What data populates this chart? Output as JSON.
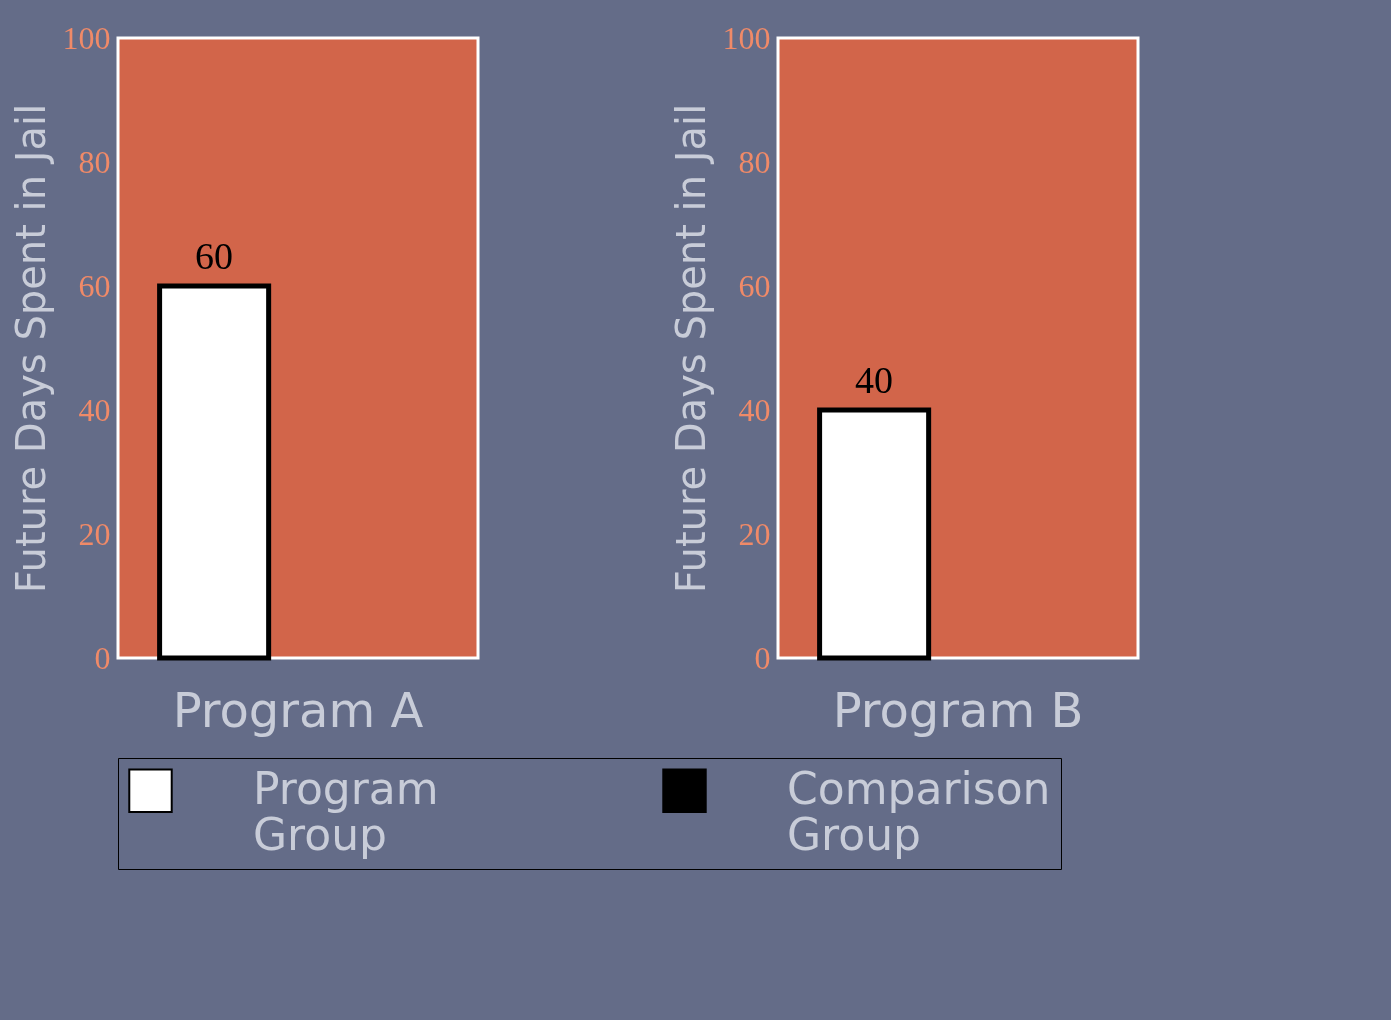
{
  "chart_data": [
    {
      "type": "bar",
      "categories": [
        "Program A"
      ],
      "ylabel": "Future Days Spent in Jail",
      "ylim": [
        0,
        100
      ],
      "yticks": [
        0,
        20,
        40,
        60,
        80,
        100
      ],
      "data_labels": true,
      "grid": false,
      "legend": "bottom",
      "series": [
        {
          "name": "Program Group",
          "color": "#ffffff",
          "values": [
            60
          ]
        },
        {
          "name": "Comparison Group",
          "color": "#000000",
          "values": [
            null
          ]
        }
      ]
    },
    {
      "type": "bar",
      "categories": [
        "Program B"
      ],
      "ylabel": "Future Days Spent in Jail",
      "ylim": [
        0,
        100
      ],
      "yticks": [
        0,
        20,
        40,
        60,
        80,
        100
      ],
      "data_labels": true,
      "grid": false,
      "series": [
        {
          "color": "#ffffff",
          "values": [
            40
          ]
        },
        {
          "color": "#000000",
          "values": [
            null
          ]
        }
      ]
    }
  ]
}
